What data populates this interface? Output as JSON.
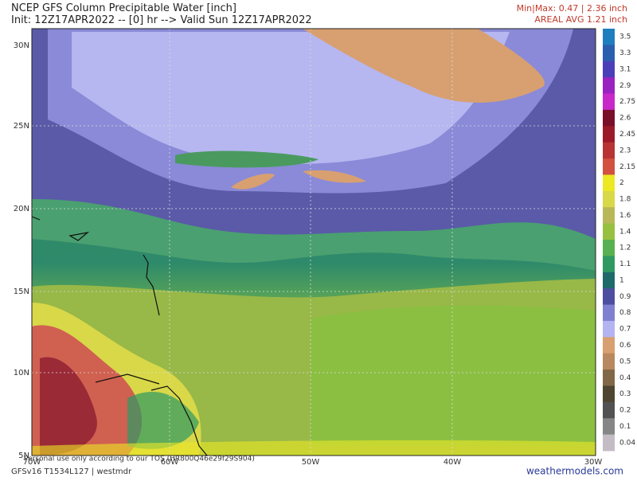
{
  "header": {
    "title": "NCEP GFS Column Precipitable Water [inch]",
    "subtitle": "Init: 12Z17APR2022 -- [0] hr --> Valid Sun 12Z17APR2022",
    "minmax": "Min|Max: 0.47 | 2.36 inch",
    "areal_avg": "AREAL AVG 1.21 inch"
  },
  "map": {
    "lat_labels": [
      "30N",
      "25N",
      "20N",
      "15N",
      "10N",
      "5N"
    ],
    "lon_labels": [
      "70W",
      "60W",
      "50W",
      "40W",
      "30W"
    ]
  },
  "colorbar": [
    {
      "label": "3.5",
      "color": "#1e7fbf"
    },
    {
      "label": "3.3",
      "color": "#2a5fb0"
    },
    {
      "label": "3.1",
      "color": "#4a3fb8"
    },
    {
      "label": "2.9",
      "color": "#9a22c0"
    },
    {
      "label": "2.75",
      "color": "#c828c8"
    },
    {
      "label": "2.6",
      "color": "#7a0f2a"
    },
    {
      "label": "2.45",
      "color": "#9a1a2a"
    },
    {
      "label": "2.3",
      "color": "#b83434"
    },
    {
      "label": "2.15",
      "color": "#d25040"
    },
    {
      "label": "2",
      "color": "#ece824"
    },
    {
      "label": "1.8",
      "color": "#d8d848"
    },
    {
      "label": "1.6",
      "color": "#b8b858"
    },
    {
      "label": "1.4",
      "color": "#98c040"
    },
    {
      "label": "1.2",
      "color": "#58b050"
    },
    {
      "label": "1.1",
      "color": "#2e9a62"
    },
    {
      "label": "1",
      "color": "#1e6a6a"
    },
    {
      "label": "0.9",
      "color": "#4e4ea0"
    },
    {
      "label": "0.8",
      "color": "#8080d0"
    },
    {
      "label": "0.7",
      "color": "#b4b4f2"
    },
    {
      "label": "0.6",
      "color": "#d8a070"
    },
    {
      "label": "0.5",
      "color": "#b88860"
    },
    {
      "label": "0.4",
      "color": "#806848"
    },
    {
      "label": "0.3",
      "color": "#4e4630"
    },
    {
      "label": "0.2",
      "color": "#525252"
    },
    {
      "label": "0.1",
      "color": "#868686"
    },
    {
      "label": "0.04",
      "color": "#c4bcc4"
    }
  ],
  "footer": {
    "tos": "Personal use only according to our TOS (HR800Q46e29f29S904)",
    "model": "GFSv16 T1534L127 | westmdr",
    "site": "weathermodels.com"
  }
}
